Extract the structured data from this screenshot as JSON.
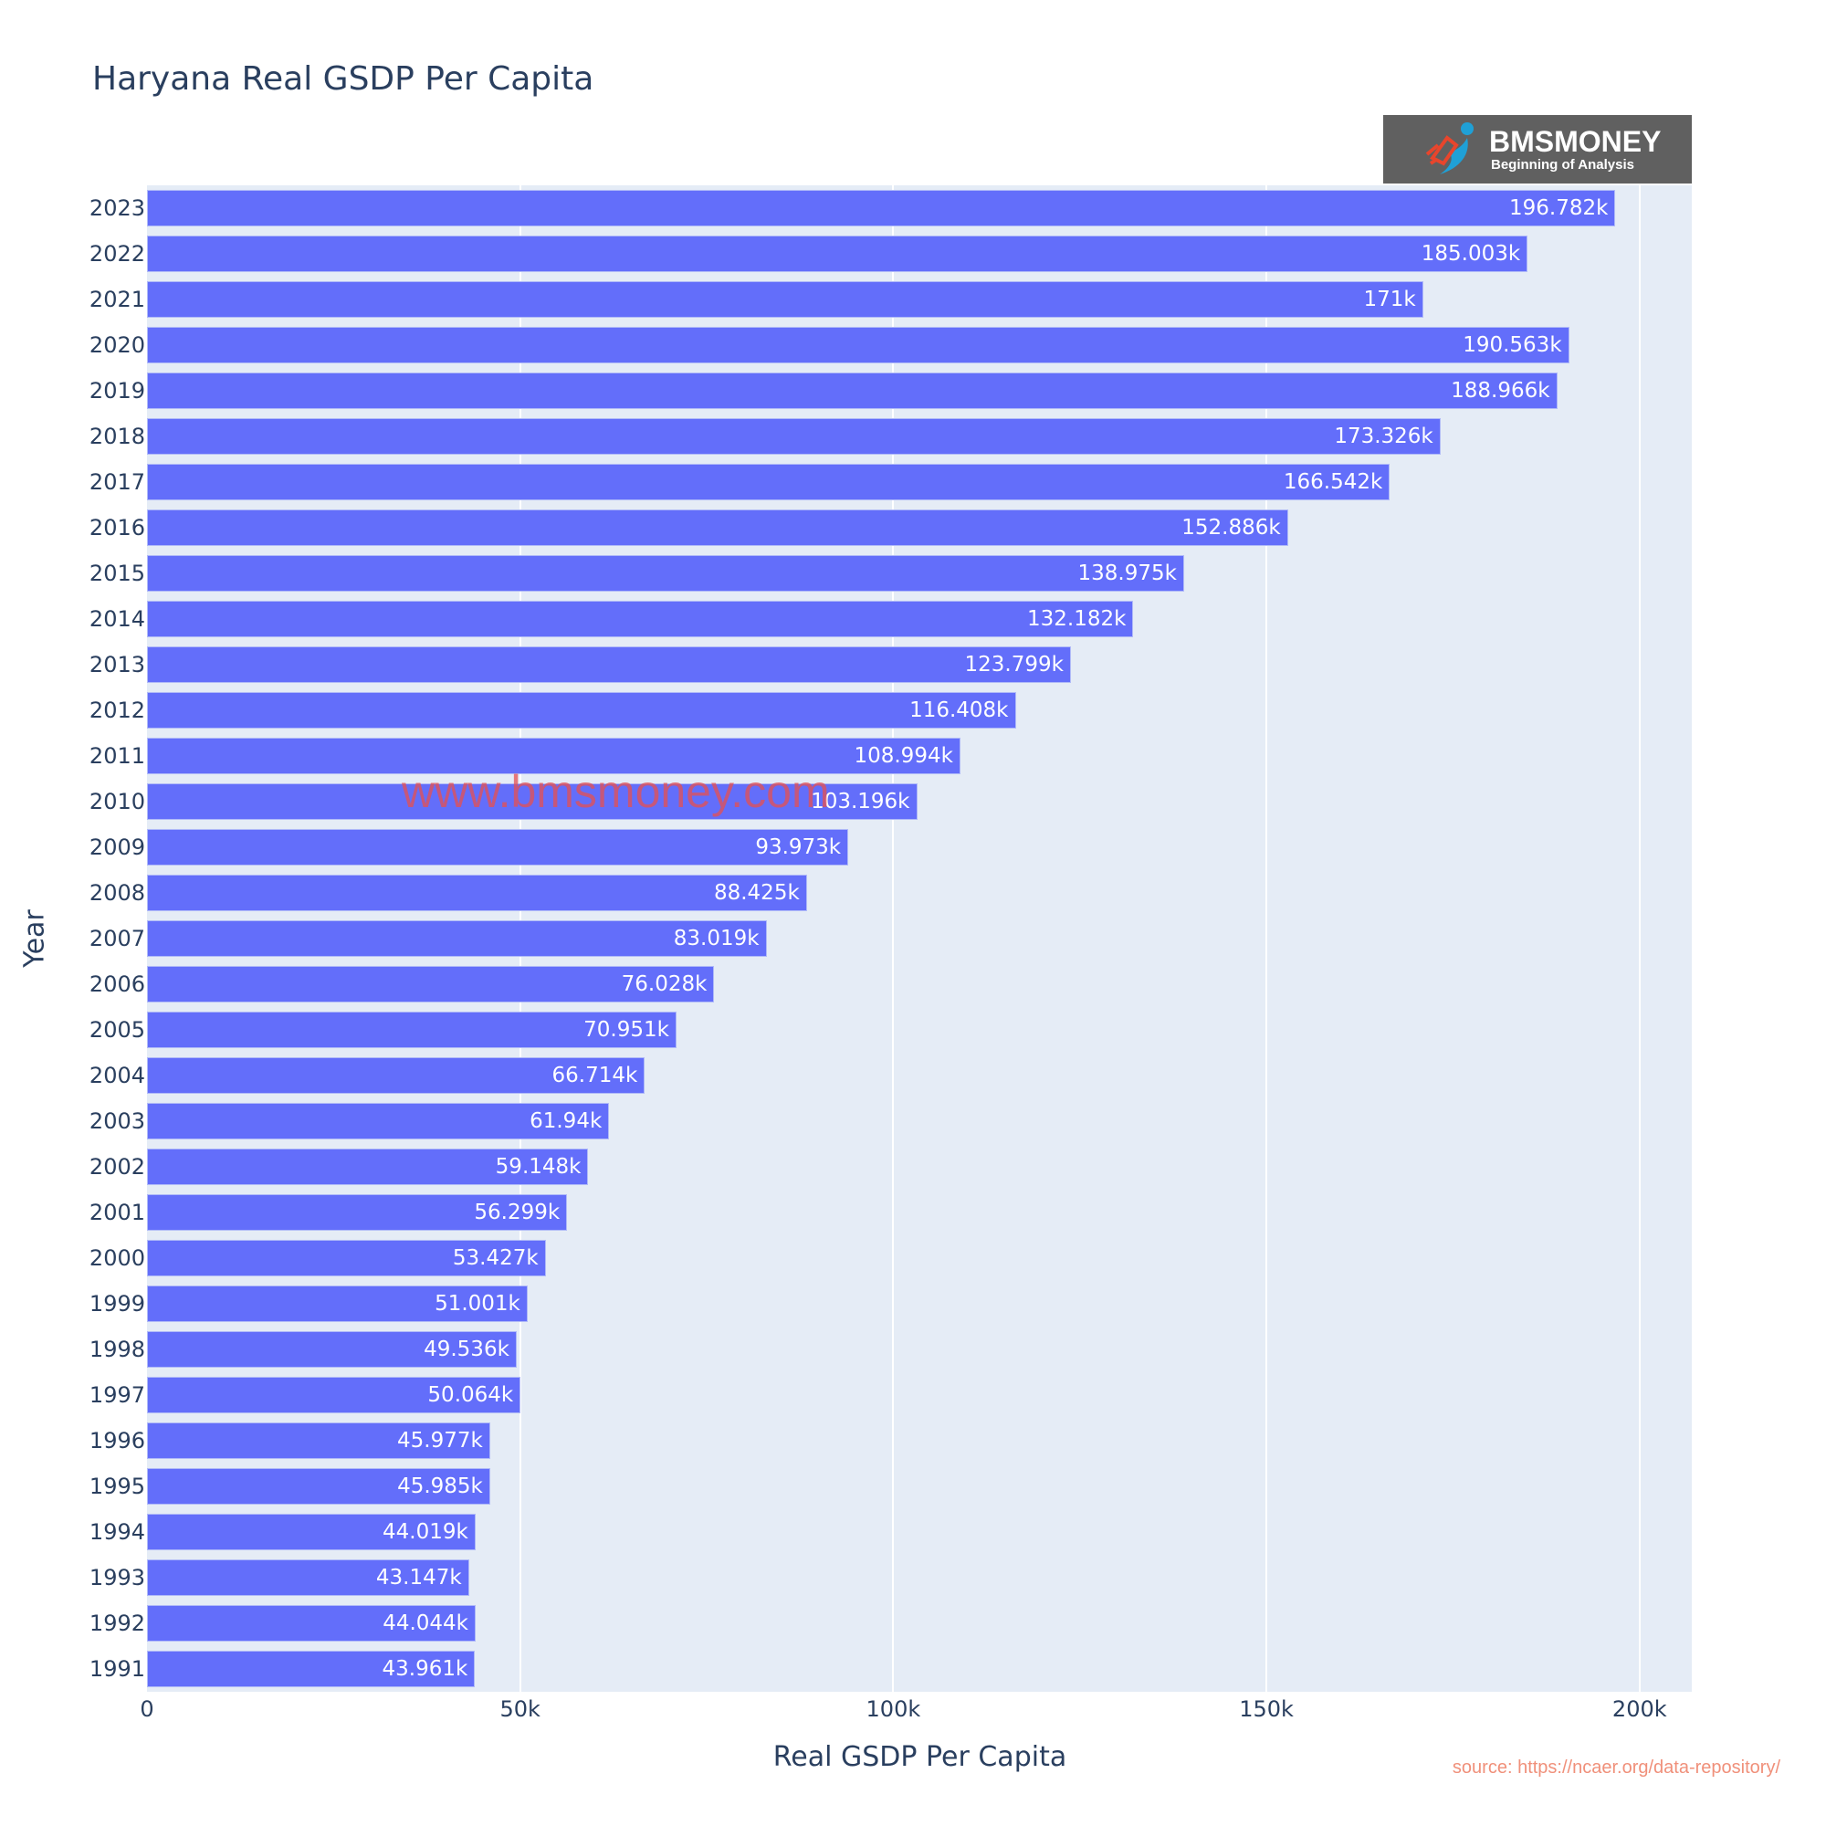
{
  "chart_data": {
    "type": "bar",
    "orientation": "horizontal",
    "title": "Haryana Real GSDP Per Capita",
    "xlabel": "Real GSDP Per Capita",
    "ylabel": "Year",
    "xlim": [
      0,
      207000
    ],
    "x_ticks": [
      "0",
      "50k",
      "100k",
      "150k",
      "200k"
    ],
    "x_tick_values": [
      0,
      50000,
      100000,
      150000,
      200000
    ],
    "grid": true,
    "legend": "none",
    "bar_color": "#636efa",
    "plot_bgcolor": "#e5ecf6",
    "categories": [
      "2023",
      "2022",
      "2021",
      "2020",
      "2019",
      "2018",
      "2017",
      "2016",
      "2015",
      "2014",
      "2013",
      "2012",
      "2011",
      "2010",
      "2009",
      "2008",
      "2007",
      "2006",
      "2005",
      "2004",
      "2003",
      "2002",
      "2001",
      "2000",
      "1999",
      "1998",
      "1997",
      "1996",
      "1995",
      "1994",
      "1993",
      "1992",
      "1991"
    ],
    "values": [
      196782,
      185003,
      171000,
      190563,
      188966,
      173326,
      166542,
      152886,
      138975,
      132182,
      123799,
      116408,
      108994,
      103196,
      93973,
      88425,
      83019,
      76028,
      70951,
      66714,
      61940,
      59148,
      56299,
      53427,
      51001,
      49536,
      50064,
      45977,
      45985,
      44019,
      43147,
      44044,
      43961
    ],
    "labels": [
      "196.782k",
      "185.003k",
      "171k",
      "190.563k",
      "188.966k",
      "173.326k",
      "166.542k",
      "152.886k",
      "138.975k",
      "132.182k",
      "123.799k",
      "116.408k",
      "108.994k",
      "103.196k",
      "93.973k",
      "88.425k",
      "83.019k",
      "76.028k",
      "70.951k",
      "66.714k",
      "61.94k",
      "59.148k",
      "56.299k",
      "53.427k",
      "51.001k",
      "49.536k",
      "50.064k",
      "45.977k",
      "45.985k",
      "44.019k",
      "43.147k",
      "44.044k",
      "43.961k"
    ],
    "annotations": [
      "www.bmsmoney.com",
      "source: https://ncaer.org/data-repository/"
    ]
  },
  "logo": {
    "name": "BMSMONEY",
    "tagline": "Beginning of Analysis"
  },
  "watermark": "www.bmsmoney.com",
  "source": "source: https://ncaer.org/data-repository/"
}
